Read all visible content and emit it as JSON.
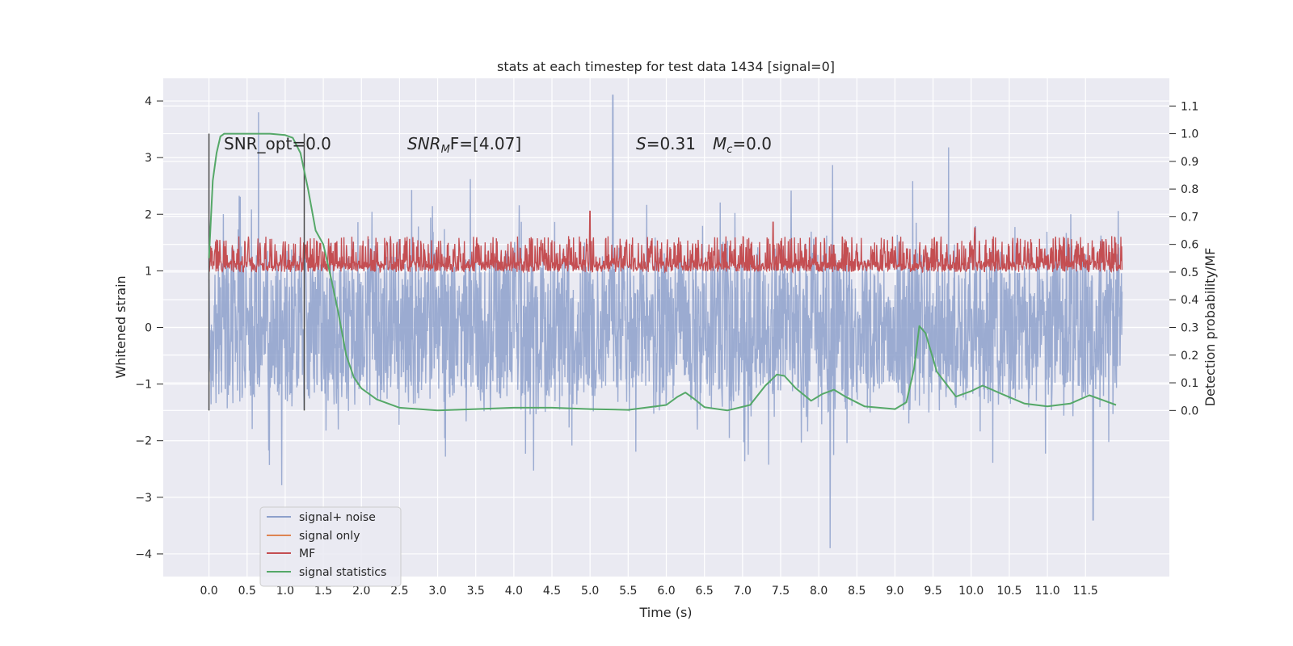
{
  "chart_data": {
    "type": "line",
    "title": "stats at each timestep for test data 1434 [signal=0]",
    "xlabel": "Time (s)",
    "ylabel": "Whitened strain",
    "ylabel_right": "Detection probability/MF",
    "xlim": [
      -0.6,
      12.6
    ],
    "ylim": [
      -4.4,
      4.4
    ],
    "ylim_right": [
      -0.6,
      1.2
    ],
    "x_ticks": [
      "0.0",
      "0.5",
      "1.0",
      "1.5",
      "2.0",
      "2.5",
      "3.0",
      "3.5",
      "4.0",
      "4.5",
      "5.0",
      "5.5",
      "6.0",
      "6.5",
      "7.0",
      "7.5",
      "8.0",
      "8.5",
      "9.0",
      "9.5",
      "10.0",
      "10.5",
      "11.0",
      "11.5"
    ],
    "y_ticks": [
      "4",
      "3",
      "2",
      "1",
      "0",
      "−1",
      "−2",
      "−3",
      "−4"
    ],
    "y_ticks_right": [
      "1.1",
      "1.0",
      "0.9",
      "0.8",
      "0.7",
      "0.6",
      "0.5",
      "0.4",
      "0.3",
      "0.2",
      "0.1",
      "0.0"
    ],
    "grid": true,
    "legend_placement": "lower-left",
    "annotations": {
      "snr_opt": "SNR_opt=0.0",
      "snr_mf_main": "SNR",
      "snr_mf_sub": "M",
      "snr_mf_rest": "F=[4.07]",
      "s_label": "S",
      "s_rest": "=0.31",
      "mc_main": "M",
      "mc_sub": "c",
      "mc_rest": "=0.0"
    },
    "vertical_lines": [
      0.0,
      1.25
    ],
    "noise_envelope": {
      "name": "signal+ noise",
      "color": "#8da0cb",
      "typical_range": [
        -1.8,
        1.9
      ],
      "peaks": [
        [
          0.65,
          3.8
        ],
        [
          5.3,
          4.1
        ],
        [
          8.15,
          -3.9
        ],
        [
          11.6,
          -3.4
        ]
      ]
    },
    "mf_band": {
      "name": "MF",
      "color": "#c44e52",
      "range_right": [
        0.5,
        0.63
      ],
      "peaks_right": [
        [
          5.0,
          0.72
        ],
        [
          7.4,
          0.68
        ],
        [
          10.05,
          0.66
        ]
      ]
    },
    "series": [
      {
        "name": "signal statistics",
        "color": "#55a868",
        "axis": "right",
        "x": [
          0.0,
          0.05,
          0.1,
          0.15,
          0.2,
          0.3,
          0.5,
          0.8,
          1.0,
          1.1,
          1.2,
          1.3,
          1.4,
          1.5,
          1.6,
          1.7,
          1.8,
          1.9,
          2.0,
          2.2,
          2.5,
          3.0,
          3.5,
          4.0,
          4.5,
          5.0,
          5.5,
          6.0,
          6.15,
          6.25,
          6.35,
          6.5,
          6.8,
          7.1,
          7.3,
          7.45,
          7.55,
          7.7,
          7.9,
          8.05,
          8.2,
          8.35,
          8.6,
          9.0,
          9.15,
          9.25,
          9.32,
          9.4,
          9.55,
          9.8,
          10.0,
          10.15,
          10.4,
          10.7,
          11.0,
          11.3,
          11.55,
          11.7,
          11.9
        ],
        "y": [
          0.55,
          0.83,
          0.93,
          0.99,
          1.0,
          1.0,
          1.0,
          1.0,
          0.995,
          0.985,
          0.93,
          0.8,
          0.65,
          0.6,
          0.48,
          0.35,
          0.2,
          0.12,
          0.08,
          0.04,
          0.01,
          0.0,
          0.005,
          0.01,
          0.01,
          0.005,
          0.002,
          0.02,
          0.05,
          0.065,
          0.045,
          0.012,
          0.0,
          0.02,
          0.09,
          0.13,
          0.125,
          0.08,
          0.035,
          0.06,
          0.075,
          0.05,
          0.015,
          0.005,
          0.03,
          0.15,
          0.305,
          0.28,
          0.14,
          0.05,
          0.07,
          0.09,
          0.06,
          0.025,
          0.015,
          0.025,
          0.055,
          0.04,
          0.02
        ]
      },
      {
        "name": "signal only",
        "color": "#dd8452",
        "axis": "left",
        "x": [],
        "y": []
      }
    ],
    "legend": [
      {
        "name": "signal+ noise",
        "color": "#8da0cb"
      },
      {
        "name": "signal only",
        "color": "#dd8452"
      },
      {
        "name": "MF",
        "color": "#c44e52"
      },
      {
        "name": "signal statistics",
        "color": "#55a868"
      }
    ]
  }
}
